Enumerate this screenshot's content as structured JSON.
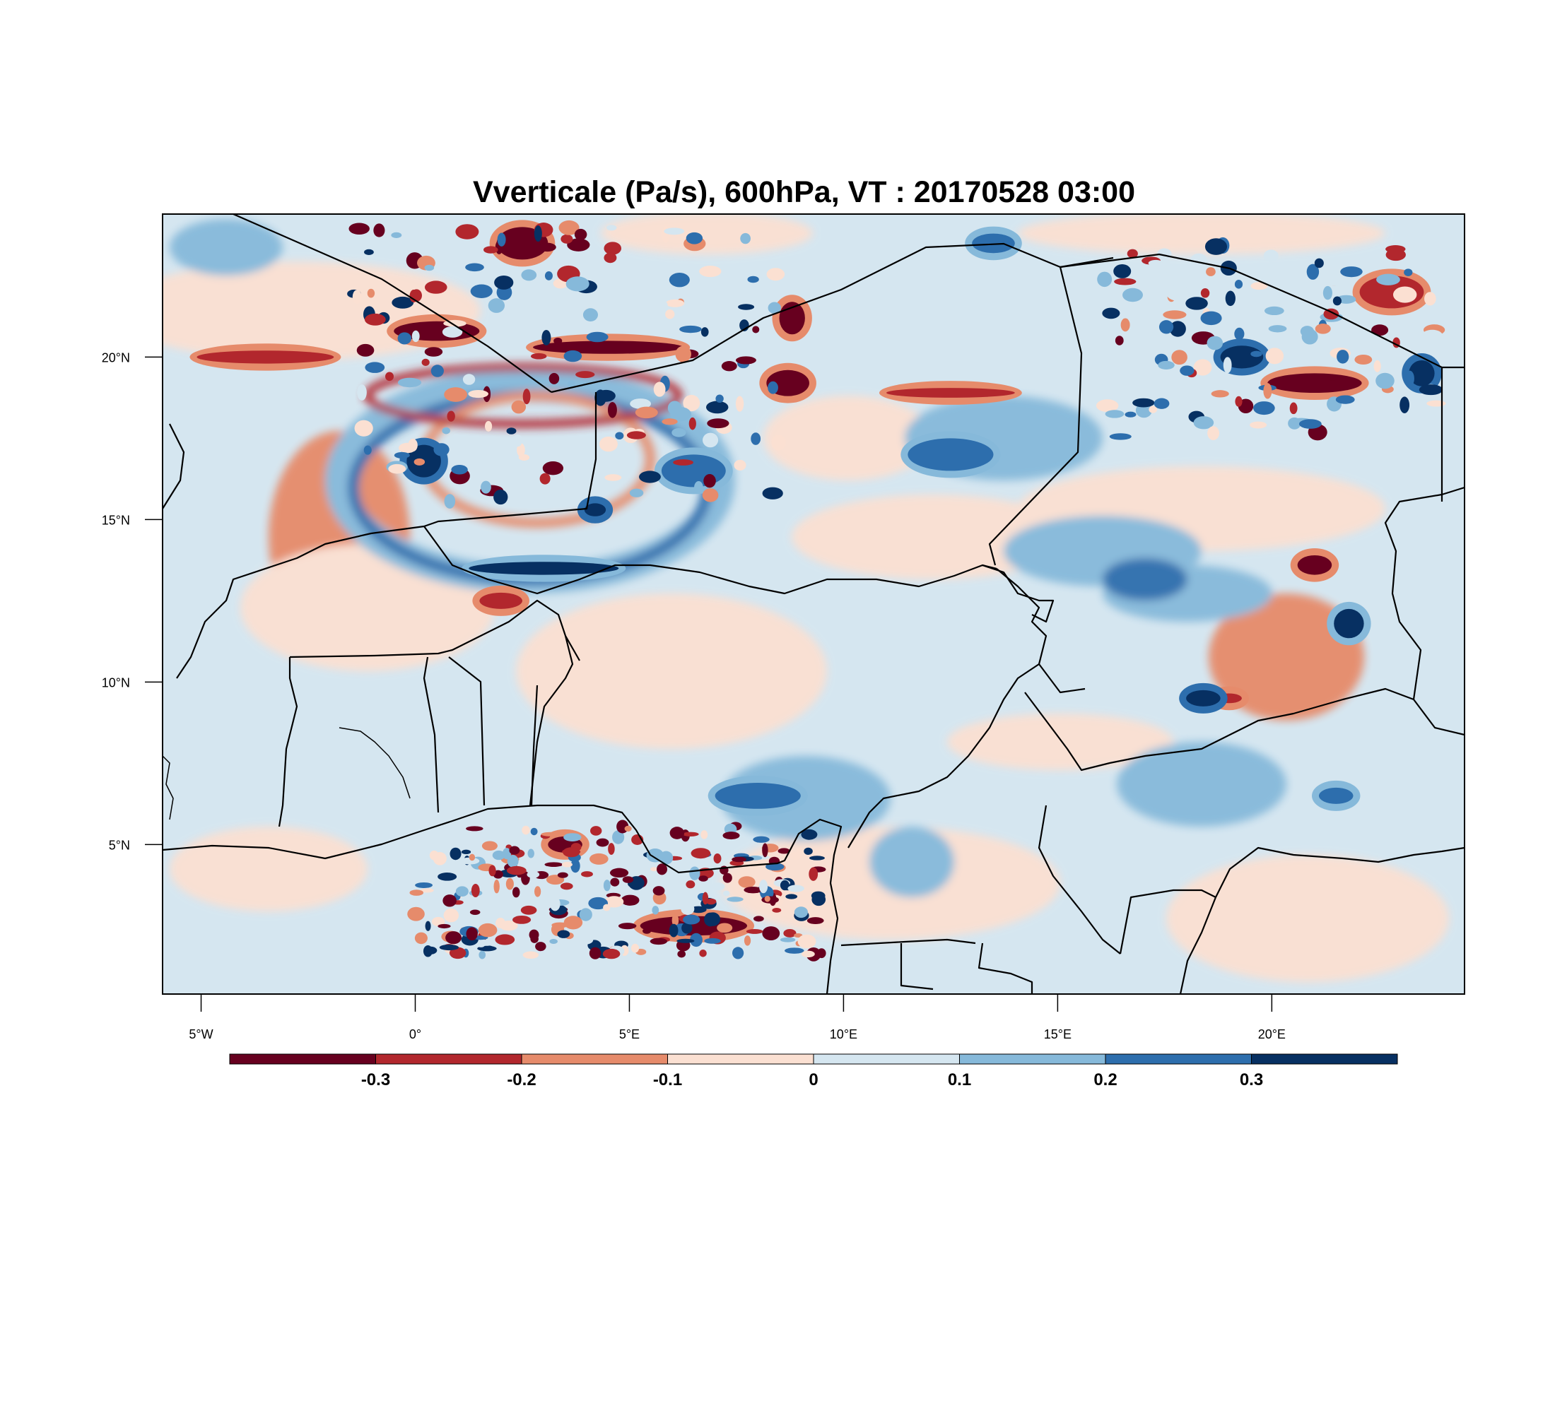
{
  "title": "Vverticale (Pa/s), 600hPa, VT : 20170528  03:00",
  "map": {
    "lon_range": [
      -5.9,
      24.5
    ],
    "lat_range": [
      0.4,
      24.4
    ],
    "lon_ticks": [
      {
        "value": -5,
        "label": "5°W"
      },
      {
        "value": 0,
        "label": "0°"
      },
      {
        "value": 5,
        "label": "5°E"
      },
      {
        "value": 10,
        "label": "10°E"
      },
      {
        "value": 15,
        "label": "15°E"
      },
      {
        "value": 20,
        "label": "20°E"
      }
    ],
    "lat_ticks": [
      {
        "value": 20,
        "label": "20°N"
      },
      {
        "value": 15,
        "label": "15°N"
      },
      {
        "value": 10,
        "label": "10°N"
      },
      {
        "value": 5,
        "label": "5°N"
      }
    ]
  },
  "colorbar": {
    "bins": [
      {
        "color": "#67001f"
      },
      {
        "color": "#b2272d"
      },
      {
        "color": "#e68b6b"
      },
      {
        "color": "#fbe0d2"
      },
      {
        "color": "#d5e6f0"
      },
      {
        "color": "#86b9da"
      },
      {
        "color": "#2d6ead"
      },
      {
        "color": "#073062"
      }
    ],
    "labels": [
      "-0.3",
      "-0.2",
      "-0.1",
      "0",
      "0.1",
      "0.2",
      "0.3"
    ]
  },
  "features": {
    "red_streaks": [
      {
        "lon": -3.5,
        "lat": 20.0,
        "value": -0.25,
        "w": 3.2,
        "h": 0.4
      },
      {
        "lon": 0.5,
        "lat": 20.8,
        "value": -0.35,
        "w": 2.0,
        "h": 0.6
      },
      {
        "lon": 2.5,
        "lat": 23.5,
        "value": -0.35,
        "w": 1.2,
        "h": 1.0
      },
      {
        "lon": 4.5,
        "lat": 20.3,
        "value": -0.35,
        "w": 3.5,
        "h": 0.4
      },
      {
        "lon": 8.8,
        "lat": 21.2,
        "value": -0.35,
        "w": 0.6,
        "h": 1.0
      },
      {
        "lon": 8.7,
        "lat": 19.2,
        "value": -0.35,
        "w": 1.0,
        "h": 0.8
      },
      {
        "lon": 12.5,
        "lat": 18.9,
        "value": -0.3,
        "w": 3.0,
        "h": 0.3
      },
      {
        "lon": 21.0,
        "lat": 19.2,
        "value": -0.35,
        "w": 2.2,
        "h": 0.6
      },
      {
        "lon": 22.8,
        "lat": 22.0,
        "value": -0.3,
        "w": 1.5,
        "h": 1.0
      },
      {
        "lon": 21.0,
        "lat": 13.6,
        "value": -0.35,
        "w": 0.8,
        "h": 0.6
      },
      {
        "lon": 6.5,
        "lat": 2.5,
        "value": -0.35,
        "w": 2.5,
        "h": 0.6
      },
      {
        "lon": 3.5,
        "lat": 5.0,
        "value": -0.35,
        "w": 0.8,
        "h": 0.5
      },
      {
        "lon": 19.0,
        "lat": 9.5,
        "value": -0.3,
        "w": 0.6,
        "h": 0.3
      },
      {
        "lon": 2.0,
        "lat": 12.5,
        "value": -0.25,
        "w": 1.0,
        "h": 0.5
      }
    ],
    "blue_cells": [
      {
        "lon": 0.2,
        "lat": 16.8,
        "value": 0.35,
        "w": 0.8,
        "h": 1.0
      },
      {
        "lon": 4.2,
        "lat": 15.3,
        "value": 0.35,
        "w": 0.5,
        "h": 0.4
      },
      {
        "lon": 6.5,
        "lat": 16.5,
        "value": 0.25,
        "w": 1.5,
        "h": 1.0
      },
      {
        "lon": 3.0,
        "lat": 13.5,
        "value": 0.3,
        "w": 3.5,
        "h": 0.4
      },
      {
        "lon": 19.3,
        "lat": 20.0,
        "value": 0.35,
        "w": 1.0,
        "h": 0.7
      },
      {
        "lon": 23.5,
        "lat": 19.5,
        "value": 0.35,
        "w": 0.6,
        "h": 0.8
      },
      {
        "lon": 18.4,
        "lat": 9.5,
        "value": 0.35,
        "w": 0.8,
        "h": 0.5
      },
      {
        "lon": 21.8,
        "lat": 11.8,
        "value": 0.3,
        "w": 0.7,
        "h": 0.9
      },
      {
        "lon": 13.5,
        "lat": 23.5,
        "value": 0.25,
        "w": 1.0,
        "h": 0.6
      },
      {
        "lon": 12.5,
        "lat": 17.0,
        "value": 0.2,
        "w": 2.0,
        "h": 1.0
      },
      {
        "lon": 8.0,
        "lat": 6.5,
        "value": 0.2,
        "w": 2.0,
        "h": 0.8
      },
      {
        "lon": 21.5,
        "lat": 6.5,
        "value": 0.25,
        "w": 0.8,
        "h": 0.5
      }
    ]
  }
}
